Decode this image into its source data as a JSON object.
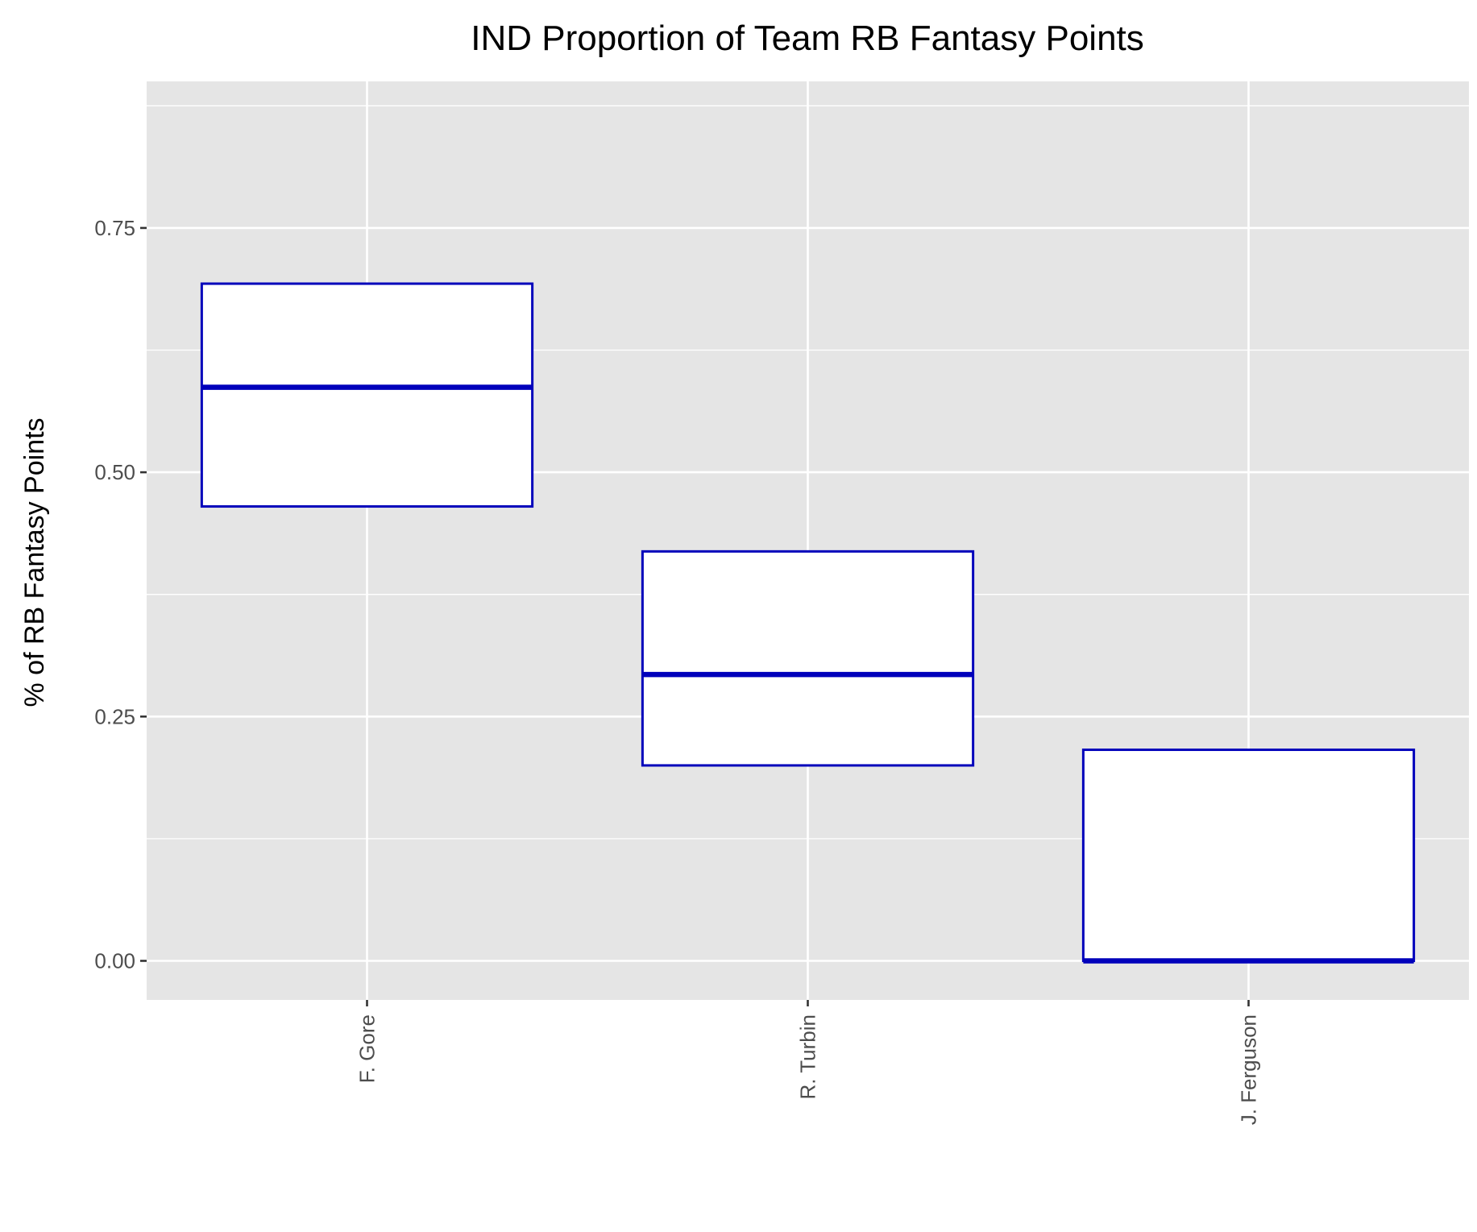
{
  "chart_data": {
    "type": "boxplot",
    "title": "IND Proportion of Team RB Fantasy Points",
    "xlabel": "",
    "ylabel": "% of RB Fantasy Points",
    "ylim": [
      -0.04,
      0.9
    ],
    "yticks": [
      {
        "value": 0.0,
        "label": "0.00"
      },
      {
        "value": 0.25,
        "label": "0.25"
      },
      {
        "value": 0.5,
        "label": "0.50"
      },
      {
        "value": 0.75,
        "label": "0.75"
      }
    ],
    "grid": true,
    "legend": "none",
    "categories": [
      "F. Gore",
      "R. Turbin",
      "J. Ferguson"
    ],
    "boxes": [
      {
        "category": "F. Gore",
        "q1": 0.465,
        "median": 0.587,
        "q3": 0.693
      },
      {
        "category": "R. Turbin",
        "q1": 0.2,
        "median": 0.293,
        "q3": 0.419
      },
      {
        "category": "J. Ferguson",
        "q1": 0.0,
        "median": 0.0,
        "q3": 0.216
      }
    ],
    "colors": {
      "box_outline": "#0000bb",
      "box_fill": "#ffffff",
      "panel_background": "#e5e5e5",
      "grid": "#ffffff"
    }
  }
}
